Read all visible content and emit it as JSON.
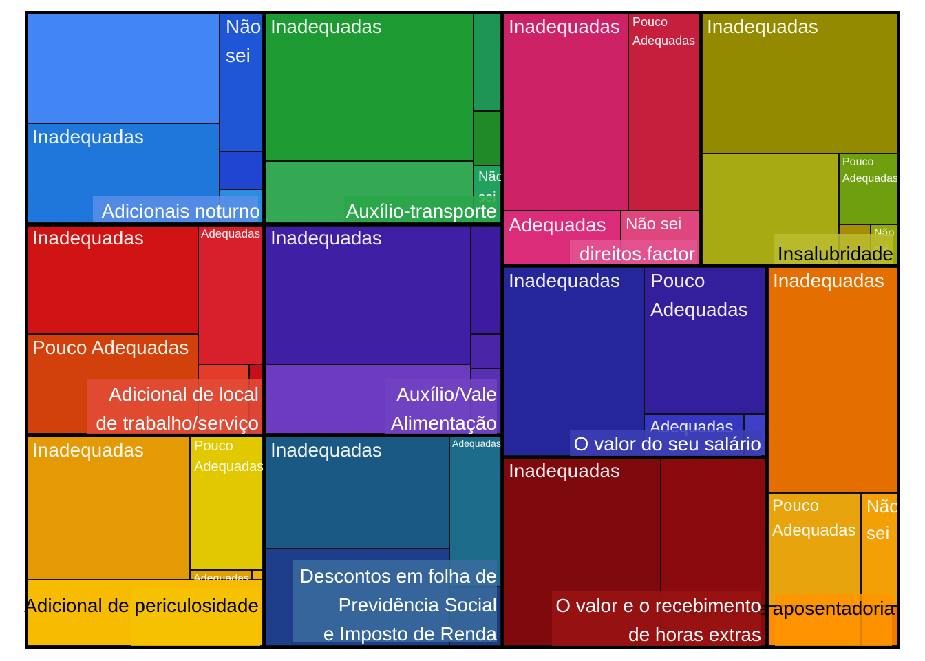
{
  "chart_data": {
    "type": "treemap",
    "groups": [
      {
        "name": "Adicionais noturno",
        "color": "#4285f4",
        "label_bg": "#5a8fe6",
        "label_color": "#ffffff",
        "children": [
          {
            "label": "",
            "value": 14.3,
            "color": "#4285f4"
          },
          {
            "label": "Inadequadas",
            "value": 11.3,
            "color": "#1f76db"
          },
          {
            "label": "Não sei",
            "value": 4.2,
            "color": "#1f56d6"
          },
          {
            "label": "",
            "value": 1.0,
            "color": "#2046d1"
          },
          {
            "label": "",
            "value": 0.8,
            "color": "#2a8de0"
          }
        ]
      },
      {
        "name": "Auxílio-transporte",
        "color": "#1e9a32",
        "label_bg": "#2aa64a",
        "label_color": "#ffffff",
        "children": [
          {
            "label": "Inadequadas",
            "value": 19.4,
            "color": "#1e9a32"
          },
          {
            "label": "",
            "value": 8.0,
            "color": "#34a853"
          },
          {
            "label": "",
            "value": 1.8,
            "color": "#1e9555"
          },
          {
            "label": "",
            "value": 0.95,
            "color": "#1f8a26"
          },
          {
            "label": "Não sei",
            "value": 0.75,
            "color": "#22a060"
          }
        ]
      },
      {
        "name": "direitos.factor",
        "color": "#ce2266",
        "label_bg": "#e35592",
        "label_color": "#ffffff",
        "children": [
          {
            "label": "Inadequadas",
            "value": 14.3,
            "color": "#ce2266"
          },
          {
            "label": "Pouco Adequadas",
            "value": 8.0,
            "color": "#c61f3d"
          },
          {
            "label": "Adequadas",
            "value": 4.4,
            "color": "#db2c7a"
          },
          {
            "label": "Não sei",
            "value": 3.2,
            "color": "#e0467e"
          }
        ]
      },
      {
        "name": "Insalubridade",
        "color": "#948a00",
        "label_bg": "#bcbc30",
        "label_color": "#000000",
        "children": [
          {
            "label": "Inadequadas",
            "value": 16.0,
            "color": "#948a00"
          },
          {
            "label": "",
            "value": 11.0,
            "color": "#a8aa14"
          },
          {
            "label": "Pouco Adequadas",
            "value": 4.3,
            "color": "#6f9e0e"
          },
          {
            "label": "",
            "value": 0.5,
            "color": "#a78c08"
          },
          {
            "label": "Não sei",
            "value": 0.5,
            "color": "#95a80a"
          }
        ]
      },
      {
        "name": "Adicional de local de trabalho/serviço",
        "color": "#d01313",
        "label_bg": "#e24c37",
        "label_color": "#ffffff",
        "children": [
          {
            "label": "Inadequadas",
            "value": 12.7,
            "color": "#d01313"
          },
          {
            "label": "Pouco Adequadas",
            "value": 10.0,
            "color": "#d2410b"
          },
          {
            "label": "Adequadas",
            "value": 5.7,
            "color": "#d8202d"
          },
          {
            "label": "",
            "value": 2.1,
            "color": "#e53c2a"
          },
          {
            "label": "",
            "value": 0.5,
            "color": "#c5101c"
          }
        ]
      },
      {
        "name": "Auxílio/Vale Alimentação",
        "color": "#3f1fa3",
        "label_bg": "#7144c2",
        "label_color": "#ffffff",
        "children": [
          {
            "label": "Inadequadas",
            "value": 20.9,
            "color": "#3f1fa3"
          },
          {
            "label": "",
            "value": 10.7,
            "color": "#6c3bbf"
          },
          {
            "label": "",
            "value": 1.7,
            "color": "#3d1b9e"
          },
          {
            "label": "",
            "value": 0.55,
            "color": "#4a25a8"
          },
          {
            "label": "",
            "value": 0.9,
            "color": "#5a2fb4"
          }
        ]
      },
      {
        "name": "O valor do seu salário",
        "color": "#25269a",
        "label_bg": "#3d3fb4",
        "label_color": "#ffffff",
        "children": [
          {
            "label": "Inadequadas",
            "value": 15.3,
            "color": "#25269a"
          },
          {
            "label": "Pouco Adequadas",
            "value": 11.0,
            "color": "#331e9c"
          },
          {
            "label": "Adequadas",
            "value": 2.0,
            "color": "#3436c4"
          },
          {
            "label": "",
            "value": 0.6,
            "color": "#3f40c8"
          }
        ]
      },
      {
        "name": "Regime de aposentadoria",
        "color": "#e46f00",
        "label_bg": "#ff9500",
        "label_color": "#000000",
        "children": [
          {
            "label": "Inadequadas",
            "value": 16.0,
            "color": "#e46f00"
          },
          {
            "label": "Pouco Adequadas",
            "value": 8.2,
            "color": "#e8a40c"
          },
          {
            "label": "Não sei",
            "value": 3.0,
            "color": "#f2a006"
          },
          {
            "label": "",
            "value": 0.9,
            "color": "#ff8c00"
          },
          {
            "label": "",
            "value": 0.5,
            "color": "#f07a00"
          }
        ]
      },
      {
        "name": "Adicional de periculosidade",
        "color": "#e39a05",
        "label_bg": "#f5c200",
        "label_color": "#000000",
        "children": [
          {
            "label": "Inadequadas",
            "value": 13.6,
            "color": "#e39a05"
          },
          {
            "label": "Pouco Adequadas",
            "value": 6.4,
            "color": "#e1c800"
          },
          {
            "label": "",
            "value": 7.5,
            "color": "#f7bb00"
          },
          {
            "label": "Adequadas",
            "value": 0.8,
            "color": "#e0a000"
          },
          {
            "label": "",
            "value": 0.3,
            "color": "#f2b000"
          }
        ]
      },
      {
        "name": "Descontos em folha de Previdência Social e Imposto de Renda",
        "color": "#1a5984",
        "label_bg": "#3a6c9e",
        "label_color": "#ffffff",
        "children": [
          {
            "label": "Inadequadas",
            "value": 13.0,
            "color": "#1a5984"
          },
          {
            "label": "",
            "value": 13.5,
            "color": "#1e3d8a"
          },
          {
            "label": "Adequadas",
            "value": 7.5,
            "color": "#1d6b8a"
          },
          {
            "label": "",
            "value": 0.8,
            "color": "#1b3a82"
          }
        ]
      },
      {
        "name": "O valor e o recebimento de horas extras",
        "color": "#7e0a0d",
        "label_bg": "#9a1414",
        "label_color": "#ffffff",
        "children": [
          {
            "label": "Inadequadas",
            "value": 16.0,
            "color": "#7e0a0d"
          },
          {
            "label": "",
            "value": 10.3,
            "color": "#8b0a0d"
          },
          {
            "label": "",
            "value": 0.6,
            "color": "#a21218"
          }
        ]
      }
    ]
  }
}
